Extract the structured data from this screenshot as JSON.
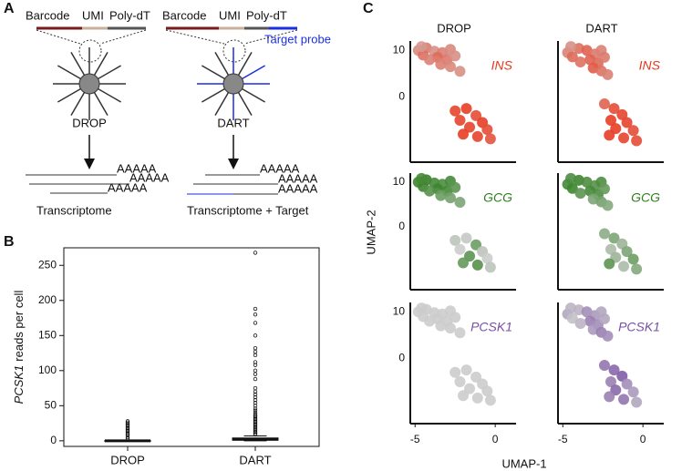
{
  "panel_labels": [
    "A",
    "B",
    "C"
  ],
  "diagram": {
    "drop": {
      "barcode": "Barcode",
      "umi": "UMI",
      "polydt": "Poly-dT",
      "name": "DROP",
      "tails": [
        "AAAAA",
        "AAAAA",
        "AAAAA"
      ],
      "result": "Transcriptome"
    },
    "dart": {
      "barcode": "Barcode",
      "umi": "UMI",
      "polydt": "Poly-dT",
      "probe": "Target probe",
      "name": "DART",
      "tails": [
        "AAAAA",
        "AAAAA",
        "AAAAA"
      ],
      "result": "Transcriptome + Target"
    }
  },
  "chart_data": [
    {
      "type": "box",
      "ylabel_gene": "PCSK1",
      "ylabel": "reads per cell",
      "categories": [
        "DROP",
        "DART"
      ],
      "ylim": [
        -8,
        275
      ],
      "yticks": [
        0,
        50,
        100,
        150,
        200,
        250
      ],
      "boxes": [
        {
          "min": 0,
          "q1": 0,
          "median": 0,
          "q3": 0.5,
          "max": 1,
          "outliers": [
            3,
            5,
            8,
            10,
            12,
            14,
            16,
            18,
            20,
            22,
            24,
            26,
            28
          ]
        },
        {
          "min": 0,
          "q1": 1,
          "median": 2,
          "q3": 4,
          "max": 7,
          "outliers": [
            9,
            11,
            13,
            15,
            17,
            19,
            21,
            23,
            25,
            27,
            29,
            31,
            33,
            35,
            37,
            40,
            43,
            46,
            50,
            54,
            58,
            62,
            66,
            70,
            75,
            88,
            95,
            100,
            108,
            112,
            122,
            127,
            132,
            150,
            168,
            180,
            188,
            268
          ]
        }
      ]
    },
    {
      "type": "scatter",
      "xlabel": "UMAP-1",
      "ylabel": "UMAP-2",
      "xlim": [
        -5.3,
        1.3
      ],
      "ylim": [
        -14,
        12
      ],
      "xticks": [
        -5,
        0
      ],
      "yticks": [
        10,
        0
      ],
      "columns": [
        {
          "title": "DROP",
          "x": [
            -4.8,
            -4.3,
            -3.8,
            -4.5,
            -3.3,
            -2.8,
            -3.6,
            -4.1,
            -3,
            -2.5,
            -3.4,
            -2.8,
            -2.2,
            -4.6,
            -2.5,
            -1.8,
            -1.2,
            -2.2,
            -0.8,
            -1.6,
            -0.5,
            -2,
            -1.1,
            -0.3
          ],
          "y": [
            10,
            10.5,
            9.8,
            9,
            9.5,
            10.2,
            8.5,
            8,
            8,
            8.8,
            7,
            6.5,
            5.5,
            10.8,
            -3,
            -2.5,
            -4,
            -5,
            -5.5,
            -6.5,
            -7,
            -8,
            -8.5,
            -9
          ]
        },
        {
          "title": "DART",
          "x": [
            -4.7,
            -4,
            -3.5,
            -4.4,
            -3,
            -2.6,
            -3.3,
            -3.9,
            -2.8,
            -2.4,
            -3.1,
            -2.6,
            -2.2,
            -4.5,
            -2.4,
            -1.8,
            -1.3,
            -2,
            -1,
            -1.7,
            -0.6,
            -2.1,
            -1.2,
            -0.4
          ],
          "y": [
            9.5,
            10.4,
            10,
            8.6,
            9.2,
            10,
            8,
            7.5,
            7.2,
            8.5,
            6.2,
            5.6,
            4.8,
            10.8,
            -1.5,
            -2.5,
            -3.8,
            -5,
            -5.5,
            -6.8,
            -7.2,
            -8.2,
            -8.8,
            -9.4
          ]
        }
      ],
      "genes": [
        {
          "name": "INS",
          "color": "#e8361c",
          "expression": [
            [
              0.45,
              0.55,
              0.4,
              0.6,
              0.5,
              0.45,
              0.65,
              0.5,
              0.55,
              0.4,
              0.5,
              0.45,
              0.4,
              0.35,
              0.9,
              0.95,
              0.85,
              0.9,
              0.95,
              0.9,
              0.85,
              0.95,
              0.9,
              0.8
            ],
            [
              0.5,
              0.6,
              0.7,
              0.65,
              0.55,
              0.5,
              0.7,
              0.6,
              0.65,
              0.55,
              0.75,
              0.6,
              0.5,
              0.4,
              0.7,
              0.85,
              0.9,
              0.95,
              0.9,
              0.95,
              0.85,
              0.95,
              0.9,
              0.85
            ]
          ]
        },
        {
          "name": "GCG",
          "color": "#2e7d1e",
          "expression": [
            [
              0.9,
              0.95,
              0.85,
              0.9,
              0.8,
              0.85,
              0.9,
              0.75,
              0.85,
              0.7,
              0.6,
              0.55,
              0.5,
              0.85,
              0.1,
              0.05,
              0.6,
              0.0,
              0.1,
              0.7,
              0.0,
              0.65,
              0.75,
              0.1
            ],
            [
              0.85,
              0.9,
              0.8,
              0.9,
              0.75,
              0.8,
              0.85,
              0.7,
              0.8,
              0.65,
              0.5,
              0.55,
              0.45,
              0.8,
              0.4,
              0.5,
              0.3,
              0.2,
              0.5,
              0.3,
              0.6,
              0.7,
              0.2,
              0.45
            ]
          ]
        },
        {
          "name": "PCSK1",
          "color": "#7a4fa3",
          "expression": [
            [
              0,
              0,
              0,
              0,
              0,
              0,
              0,
              0,
              0,
              0,
              0,
              0,
              0,
              0,
              0,
              0,
              0,
              0,
              0,
              0,
              0,
              0,
              0,
              0
            ],
            [
              0.3,
              0.2,
              0.5,
              0.1,
              0.4,
              0.3,
              0.6,
              0.2,
              0.5,
              0.3,
              0.4,
              0.6,
              0.5,
              0.2,
              0.7,
              0.8,
              0.9,
              0.6,
              0.5,
              0.8,
              0.4,
              0.6,
              0.7,
              0.3
            ]
          ]
        }
      ]
    }
  ]
}
